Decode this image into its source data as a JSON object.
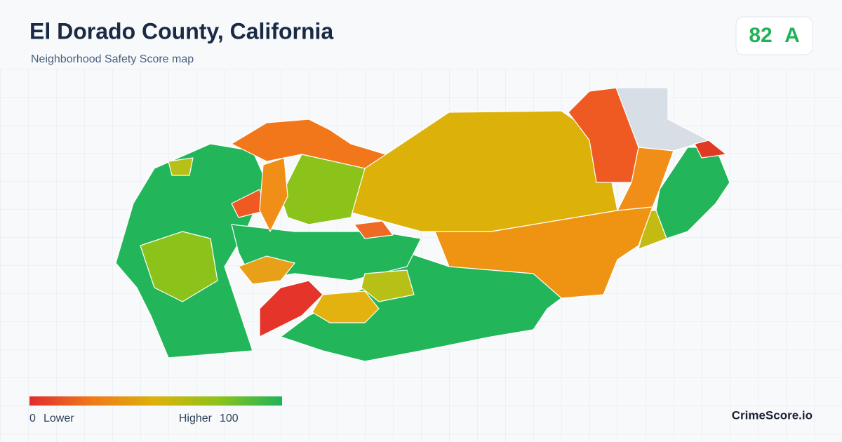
{
  "header": {
    "title": "El Dorado County, California",
    "subtitle": "Neighborhood Safety Score map"
  },
  "score": {
    "value": 82,
    "grade": "A"
  },
  "legend": {
    "min": 0,
    "min_label": "Lower",
    "max_label": "Higher",
    "max": 100
  },
  "brand": "CrimeScore.io"
}
